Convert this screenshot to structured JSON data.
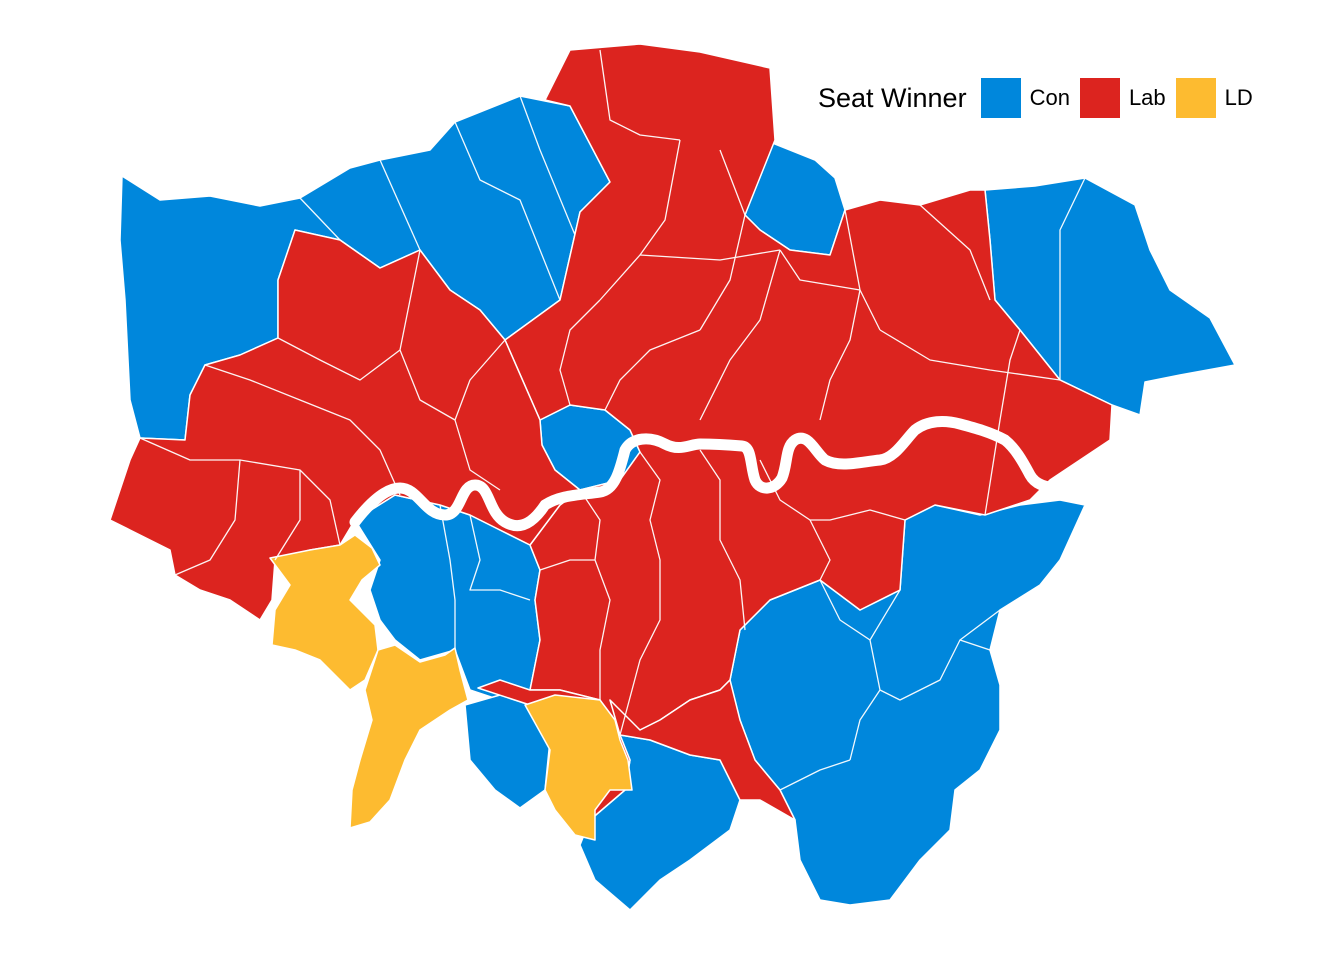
{
  "legend": {
    "title": "Seat Winner",
    "items": [
      {
        "key": "con",
        "label": "Con",
        "color": "#0087DC"
      },
      {
        "key": "lab",
        "label": "Lab",
        "color": "#DC241F"
      },
      {
        "key": "ld",
        "label": "LD",
        "color": "#FDBB30"
      }
    ]
  },
  "colors": {
    "con": "#0087DC",
    "lab": "#DC241F",
    "ld": "#FDBB30",
    "border": "#ffffff",
    "river": "#ffffff"
  }
}
